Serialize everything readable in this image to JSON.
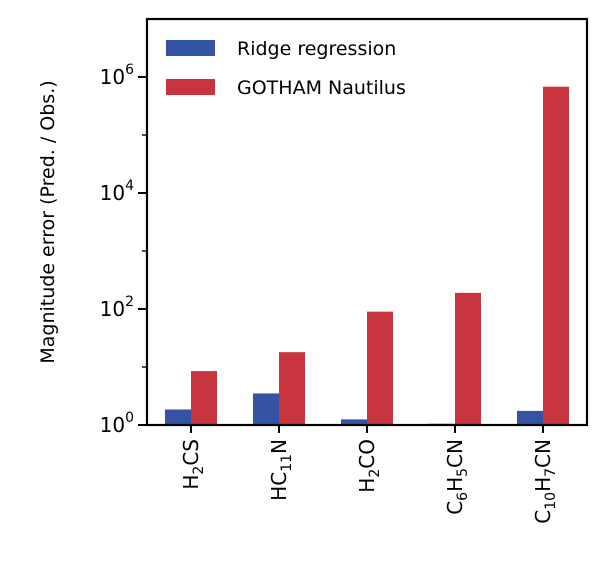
{
  "chart_data": {
    "type": "bar",
    "yscale": "log",
    "ylabel": "Magnitude error (Pred. / Obs.)",
    "ylim": [
      1,
      10000000
    ],
    "yticks": [
      {
        "value": 1,
        "label": "10^0"
      },
      {
        "value": 100,
        "label": "10^2"
      },
      {
        "value": 10000,
        "label": "10^4"
      },
      {
        "value": 1000000,
        "label": "10^6"
      }
    ],
    "categories": [
      [
        {
          "t": "H"
        },
        {
          "t": "2",
          "sub": true
        },
        {
          "t": "CS"
        }
      ],
      [
        {
          "t": "HC"
        },
        {
          "t": "11",
          "sub": true
        },
        {
          "t": "N"
        }
      ],
      [
        {
          "t": "H"
        },
        {
          "t": "2",
          "sub": true
        },
        {
          "t": "CO"
        }
      ],
      [
        {
          "t": "C"
        },
        {
          "t": "6",
          "sub": true
        },
        {
          "t": "H"
        },
        {
          "t": "5",
          "sub": true
        },
        {
          "t": "CN"
        }
      ],
      [
        {
          "t": "C"
        },
        {
          "t": "10",
          "sub": true
        },
        {
          "t": "H"
        },
        {
          "t": "7",
          "sub": true
        },
        {
          "t": "CN"
        }
      ]
    ],
    "series": [
      {
        "name": "Ridge regression",
        "color": "#3553a4",
        "values": [
          1.85,
          3.5,
          1.25,
          1.05,
          1.75
        ]
      },
      {
        "name": "GOTHAM Nautilus",
        "color": "#c8353f",
        "values": [
          8.5,
          18,
          90,
          190,
          680000
        ]
      }
    ],
    "legend_position": "top-left",
    "grid": false
  }
}
